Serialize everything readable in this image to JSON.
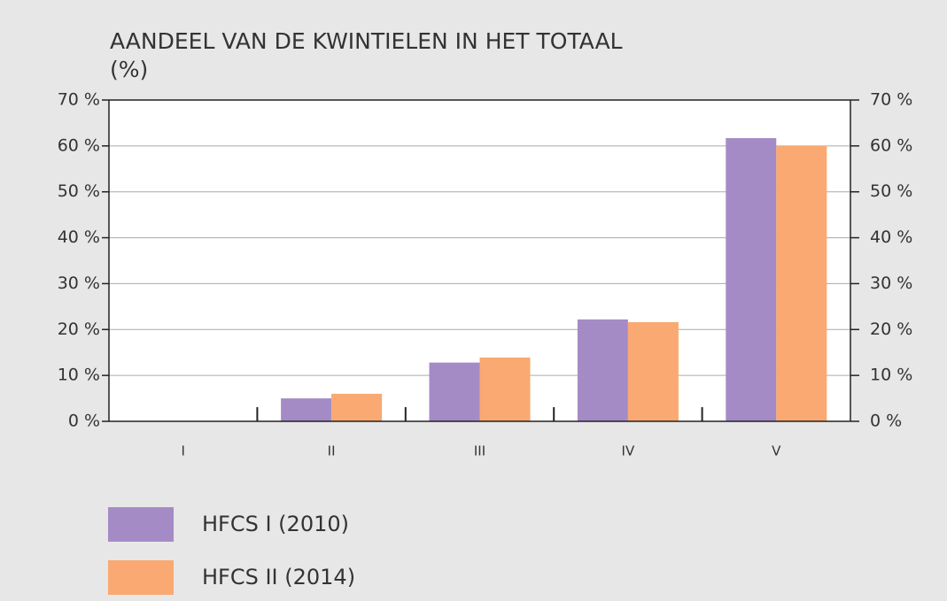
{
  "chart_data": {
    "type": "bar",
    "title": "AANDEEL VAN DE KWINTIELEN IN HET TOTAAL",
    "subtitle": "(%)",
    "categories": [
      "I",
      "II",
      "III",
      "IV",
      "V"
    ],
    "series": [
      {
        "name": "HFCS I (2010)",
        "color": "#a58bc6",
        "values": [
          0,
          5,
          12.8,
          22.2,
          61.7
        ]
      },
      {
        "name": "HFCS II (2014)",
        "color": "#f9a971",
        "values": [
          0,
          6,
          13.9,
          21.6,
          60
        ]
      }
    ],
    "ylim": [
      0,
      70
    ],
    "yticks": [
      {
        "value": 0,
        "label": "0 %"
      },
      {
        "value": 10,
        "label": "10 %"
      },
      {
        "value": 20,
        "label": "20 %"
      },
      {
        "value": 30,
        "label": "30 %"
      },
      {
        "value": 40,
        "label": "40 %"
      },
      {
        "value": 50,
        "label": "50 %"
      },
      {
        "value": 60,
        "label": "60 %"
      },
      {
        "value": 70,
        "label": "70 %"
      }
    ],
    "y2lim": [
      0,
      70
    ],
    "y2ticks": [
      {
        "value": 0,
        "label": "0 %"
      },
      {
        "value": 10,
        "label": "10 %"
      },
      {
        "value": 20,
        "label": "20 %"
      },
      {
        "value": 30,
        "label": "30 %"
      },
      {
        "value": 40,
        "label": "40 %"
      },
      {
        "value": 50,
        "label": "50 %"
      },
      {
        "value": 60,
        "label": "60 %"
      },
      {
        "value": 70,
        "label": "70 %"
      }
    ],
    "grid": true,
    "legend": "lower left"
  }
}
